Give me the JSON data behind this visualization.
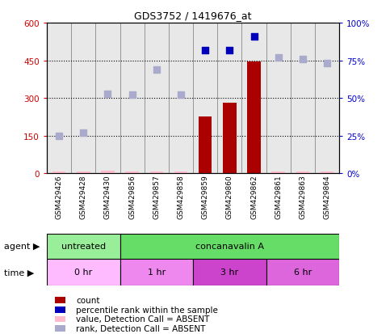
{
  "title": "GDS3752 / 1419676_at",
  "samples": [
    "GSM429426",
    "GSM429428",
    "GSM429430",
    "GSM429856",
    "GSM429857",
    "GSM429858",
    "GSM429859",
    "GSM429860",
    "GSM429862",
    "GSM429861",
    "GSM429863",
    "GSM429864"
  ],
  "count_values": [
    8,
    8,
    10,
    8,
    8,
    8,
    225,
    280,
    445,
    8,
    8,
    8
  ],
  "count_is_absent": [
    true,
    true,
    true,
    true,
    true,
    true,
    false,
    false,
    false,
    true,
    true,
    true
  ],
  "rank_values": [
    25,
    27,
    53,
    52,
    69,
    52,
    82,
    82,
    91,
    77,
    76,
    73
  ],
  "rank_is_absent": [
    true,
    true,
    true,
    true,
    true,
    true,
    false,
    false,
    false,
    true,
    true,
    true
  ],
  "ylim_left": [
    0,
    600
  ],
  "ylim_right": [
    0,
    100
  ],
  "yticks_left": [
    0,
    150,
    300,
    450,
    600
  ],
  "yticks_right": [
    0,
    25,
    50,
    75,
    100
  ],
  "ytick_labels_left": [
    "0",
    "150",
    "300",
    "450",
    "600"
  ],
  "ytick_labels_right": [
    "0%",
    "25%",
    "50%",
    "75%",
    "100%"
  ],
  "agent_groups": [
    {
      "label": "untreated",
      "start": 0,
      "end": 3,
      "color": "#99ee99"
    },
    {
      "label": "concanavalin A",
      "start": 3,
      "end": 12,
      "color": "#66dd66"
    }
  ],
  "time_groups": [
    {
      "label": "0 hr",
      "start": 0,
      "end": 3,
      "color": "#ffbbff"
    },
    {
      "label": "1 hr",
      "start": 3,
      "end": 6,
      "color": "#ee88ee"
    },
    {
      "label": "3 hr",
      "start": 6,
      "end": 9,
      "color": "#cc44cc"
    },
    {
      "label": "6 hr",
      "start": 9,
      "end": 12,
      "color": "#dd66dd"
    }
  ],
  "color_count_present": "#aa0000",
  "color_count_absent": "#ffbbcc",
  "color_rank_present": "#0000bb",
  "color_rank_absent": "#aaaacc",
  "legend_items": [
    {
      "color": "#aa0000",
      "label": "count"
    },
    {
      "color": "#0000bb",
      "label": "percentile rank within the sample"
    },
    {
      "color": "#ffbbcc",
      "label": "value, Detection Call = ABSENT"
    },
    {
      "color": "#aaaacc",
      "label": "rank, Detection Call = ABSENT"
    }
  ]
}
